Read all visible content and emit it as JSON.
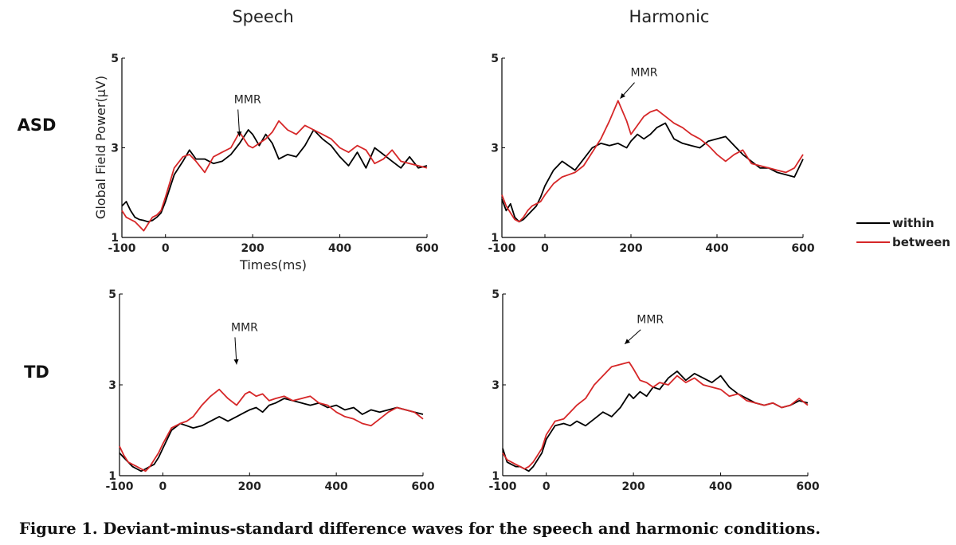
{
  "figure": {
    "caption": "Figure 1.  Deviant-minus-standard difference waves for the speech and harmonic conditions.",
    "column_titles": [
      "Speech",
      "Harmonic"
    ],
    "row_labels": [
      "ASD",
      "TD"
    ],
    "annotation": "MMR",
    "ylabel": "Global Field Power(μV)",
    "xlabel": "Times(ms)"
  },
  "legend": {
    "items": [
      {
        "label": "within",
        "color": "#000000"
      },
      {
        "label": "between",
        "color": "#d62728"
      }
    ]
  },
  "colors": {
    "within": "#000000",
    "between": "#d62728"
  },
  "chart_data": [
    {
      "type": "line",
      "title": "Speech",
      "row": "ASD",
      "xlabel": "Times(ms)",
      "ylabel": "Global Field Power(μV)",
      "xlim": [
        -100,
        600
      ],
      "ylim": [
        1,
        5
      ],
      "xticks": [
        -100,
        0,
        200,
        400,
        600
      ],
      "yticks": [
        1,
        3,
        5
      ],
      "annotations": [
        {
          "text": "MMR",
          "x": 170,
          "y": 3.25
        }
      ],
      "series": [
        {
          "name": "within",
          "x": [
            -100,
            -90,
            -80,
            -70,
            -60,
            -50,
            -40,
            -30,
            -20,
            -10,
            0,
            20,
            40,
            55,
            70,
            90,
            110,
            130,
            150,
            170,
            190,
            200,
            215,
            230,
            245,
            260,
            280,
            300,
            320,
            340,
            360,
            380,
            400,
            420,
            440,
            460,
            480,
            500,
            520,
            540,
            560,
            580,
            600
          ],
          "y": [
            1.7,
            1.8,
            1.6,
            1.45,
            1.4,
            1.38,
            1.35,
            1.38,
            1.45,
            1.55,
            1.8,
            2.4,
            2.7,
            2.95,
            2.75,
            2.75,
            2.65,
            2.7,
            2.85,
            3.1,
            3.4,
            3.3,
            3.05,
            3.3,
            3.1,
            2.75,
            2.85,
            2.8,
            3.05,
            3.4,
            3.2,
            3.05,
            2.8,
            2.6,
            2.9,
            2.55,
            3.0,
            2.85,
            2.7,
            2.55,
            2.8,
            2.55,
            2.6
          ]
        },
        {
          "name": "between",
          "x": [
            -100,
            -90,
            -80,
            -70,
            -60,
            -50,
            -40,
            -30,
            -20,
            -10,
            0,
            20,
            40,
            55,
            70,
            90,
            110,
            130,
            150,
            170,
            190,
            200,
            215,
            230,
            245,
            260,
            280,
            300,
            320,
            340,
            360,
            380,
            400,
            420,
            440,
            460,
            480,
            500,
            520,
            540,
            560,
            580,
            600
          ],
          "y": [
            1.6,
            1.45,
            1.4,
            1.35,
            1.25,
            1.15,
            1.3,
            1.45,
            1.5,
            1.6,
            1.9,
            2.55,
            2.8,
            2.85,
            2.7,
            2.45,
            2.8,
            2.9,
            3.0,
            3.35,
            3.05,
            3.0,
            3.1,
            3.2,
            3.35,
            3.6,
            3.4,
            3.3,
            3.5,
            3.4,
            3.3,
            3.2,
            3.0,
            2.9,
            3.05,
            2.95,
            2.65,
            2.75,
            2.95,
            2.7,
            2.65,
            2.6,
            2.55
          ]
        }
      ]
    },
    {
      "type": "line",
      "title": "Harmonic",
      "row": "ASD",
      "xlim": [
        -100,
        600
      ],
      "ylim": [
        1,
        5
      ],
      "xticks": [
        -100,
        0,
        200,
        400,
        600
      ],
      "yticks": [
        1,
        3,
        5
      ],
      "annotations": [
        {
          "text": "MMR",
          "x": 175,
          "y": 4.1
        }
      ],
      "series": [
        {
          "name": "within",
          "x": [
            -100,
            -90,
            -80,
            -70,
            -60,
            -50,
            -40,
            -30,
            -20,
            -10,
            0,
            20,
            40,
            55,
            70,
            90,
            110,
            130,
            150,
            170,
            190,
            200,
            215,
            230,
            245,
            260,
            280,
            300,
            320,
            340,
            360,
            380,
            400,
            420,
            440,
            460,
            480,
            500,
            520,
            540,
            560,
            580,
            600
          ],
          "y": [
            1.85,
            1.6,
            1.75,
            1.45,
            1.35,
            1.4,
            1.5,
            1.6,
            1.7,
            1.9,
            2.15,
            2.5,
            2.7,
            2.6,
            2.5,
            2.75,
            3.0,
            3.1,
            3.05,
            3.1,
            3.0,
            3.15,
            3.3,
            3.2,
            3.3,
            3.45,
            3.55,
            3.2,
            3.1,
            3.05,
            3.0,
            3.15,
            3.2,
            3.25,
            3.05,
            2.85,
            2.7,
            2.55,
            2.55,
            2.45,
            2.4,
            2.35,
            2.75
          ]
        },
        {
          "name": "between",
          "x": [
            -100,
            -90,
            -80,
            -70,
            -60,
            -50,
            -40,
            -30,
            -20,
            -10,
            0,
            20,
            40,
            55,
            70,
            90,
            110,
            130,
            150,
            170,
            190,
            200,
            215,
            230,
            245,
            260,
            280,
            300,
            320,
            340,
            360,
            380,
            400,
            420,
            440,
            460,
            480,
            500,
            520,
            540,
            560,
            580,
            600
          ],
          "y": [
            1.95,
            1.7,
            1.55,
            1.4,
            1.35,
            1.45,
            1.6,
            1.7,
            1.75,
            1.8,
            1.95,
            2.2,
            2.35,
            2.4,
            2.45,
            2.6,
            2.9,
            3.2,
            3.6,
            4.05,
            3.6,
            3.3,
            3.5,
            3.7,
            3.8,
            3.85,
            3.7,
            3.55,
            3.45,
            3.3,
            3.2,
            3.05,
            2.85,
            2.7,
            2.85,
            2.95,
            2.65,
            2.6,
            2.55,
            2.5,
            2.45,
            2.55,
            2.85
          ]
        }
      ]
    },
    {
      "type": "line",
      "title": "Speech",
      "row": "TD",
      "xlim": [
        -100,
        600
      ],
      "ylim": [
        1,
        5
      ],
      "xticks": [
        -100,
        0,
        200,
        400,
        600
      ],
      "yticks": [
        1,
        3,
        5
      ],
      "annotations": [
        {
          "text": "MMR",
          "x": 170,
          "y": 3.45
        }
      ],
      "series": [
        {
          "name": "within",
          "x": [
            -100,
            -90,
            -80,
            -70,
            -60,
            -50,
            -40,
            -30,
            -20,
            -10,
            0,
            20,
            40,
            55,
            70,
            90,
            110,
            130,
            150,
            170,
            190,
            200,
            215,
            230,
            245,
            260,
            280,
            300,
            320,
            340,
            360,
            380,
            400,
            420,
            440,
            460,
            480,
            500,
            520,
            540,
            560,
            580,
            600
          ],
          "y": [
            1.5,
            1.4,
            1.3,
            1.2,
            1.15,
            1.1,
            1.15,
            1.2,
            1.25,
            1.4,
            1.6,
            2.0,
            2.15,
            2.1,
            2.05,
            2.1,
            2.2,
            2.3,
            2.2,
            2.3,
            2.4,
            2.45,
            2.5,
            2.4,
            2.55,
            2.6,
            2.7,
            2.65,
            2.6,
            2.55,
            2.6,
            2.5,
            2.55,
            2.45,
            2.5,
            2.35,
            2.45,
            2.4,
            2.45,
            2.5,
            2.45,
            2.4,
            2.35
          ]
        },
        {
          "name": "between",
          "x": [
            -100,
            -90,
            -80,
            -70,
            -60,
            -50,
            -40,
            -30,
            -20,
            -10,
            0,
            20,
            40,
            55,
            70,
            90,
            110,
            130,
            150,
            170,
            190,
            200,
            215,
            230,
            245,
            260,
            280,
            300,
            320,
            340,
            360,
            380,
            400,
            420,
            440,
            460,
            480,
            500,
            520,
            540,
            560,
            580,
            600
          ],
          "y": [
            1.65,
            1.45,
            1.3,
            1.25,
            1.2,
            1.15,
            1.1,
            1.2,
            1.35,
            1.5,
            1.7,
            2.05,
            2.15,
            2.2,
            2.3,
            2.55,
            2.75,
            2.9,
            2.7,
            2.55,
            2.8,
            2.85,
            2.75,
            2.8,
            2.65,
            2.7,
            2.75,
            2.65,
            2.7,
            2.75,
            2.6,
            2.55,
            2.4,
            2.3,
            2.25,
            2.15,
            2.1,
            2.25,
            2.4,
            2.5,
            2.45,
            2.4,
            2.25
          ]
        }
      ]
    },
    {
      "type": "line",
      "title": "Harmonic",
      "row": "TD",
      "xlim": [
        -100,
        600
      ],
      "ylim": [
        1,
        5
      ],
      "xticks": [
        -100,
        0,
        200,
        400,
        600
      ],
      "yticks": [
        1,
        3,
        5
      ],
      "annotations": [
        {
          "text": "MMR",
          "x": 180,
          "y": 3.9
        }
      ],
      "series": [
        {
          "name": "within",
          "x": [
            -100,
            -90,
            -80,
            -70,
            -60,
            -50,
            -40,
            -30,
            -20,
            -10,
            0,
            20,
            40,
            55,
            70,
            90,
            110,
            130,
            150,
            170,
            190,
            200,
            215,
            230,
            245,
            260,
            280,
            300,
            320,
            340,
            360,
            380,
            400,
            420,
            440,
            460,
            480,
            500,
            520,
            540,
            560,
            580,
            600
          ],
          "y": [
            1.6,
            1.3,
            1.25,
            1.2,
            1.2,
            1.15,
            1.1,
            1.2,
            1.35,
            1.5,
            1.8,
            2.1,
            2.15,
            2.1,
            2.2,
            2.1,
            2.25,
            2.4,
            2.3,
            2.5,
            2.8,
            2.7,
            2.85,
            2.75,
            2.95,
            2.9,
            3.15,
            3.3,
            3.1,
            3.25,
            3.15,
            3.05,
            3.2,
            2.95,
            2.8,
            2.7,
            2.6,
            2.55,
            2.6,
            2.5,
            2.55,
            2.65,
            2.6
          ]
        },
        {
          "name": "between",
          "x": [
            -100,
            -90,
            -80,
            -70,
            -60,
            -50,
            -40,
            -30,
            -20,
            -10,
            0,
            20,
            40,
            55,
            70,
            90,
            110,
            130,
            150,
            170,
            190,
            200,
            215,
            230,
            245,
            260,
            280,
            300,
            320,
            340,
            360,
            380,
            400,
            420,
            440,
            460,
            480,
            500,
            520,
            540,
            560,
            580,
            600
          ],
          "y": [
            1.5,
            1.35,
            1.3,
            1.25,
            1.2,
            1.15,
            1.2,
            1.3,
            1.45,
            1.6,
            1.9,
            2.2,
            2.25,
            2.4,
            2.55,
            2.7,
            3.0,
            3.2,
            3.4,
            3.45,
            3.5,
            3.35,
            3.1,
            3.05,
            2.95,
            3.05,
            3.0,
            3.2,
            3.05,
            3.15,
            3.0,
            2.95,
            2.9,
            2.75,
            2.8,
            2.65,
            2.6,
            2.55,
            2.6,
            2.5,
            2.55,
            2.7,
            2.55
          ]
        }
      ]
    }
  ]
}
